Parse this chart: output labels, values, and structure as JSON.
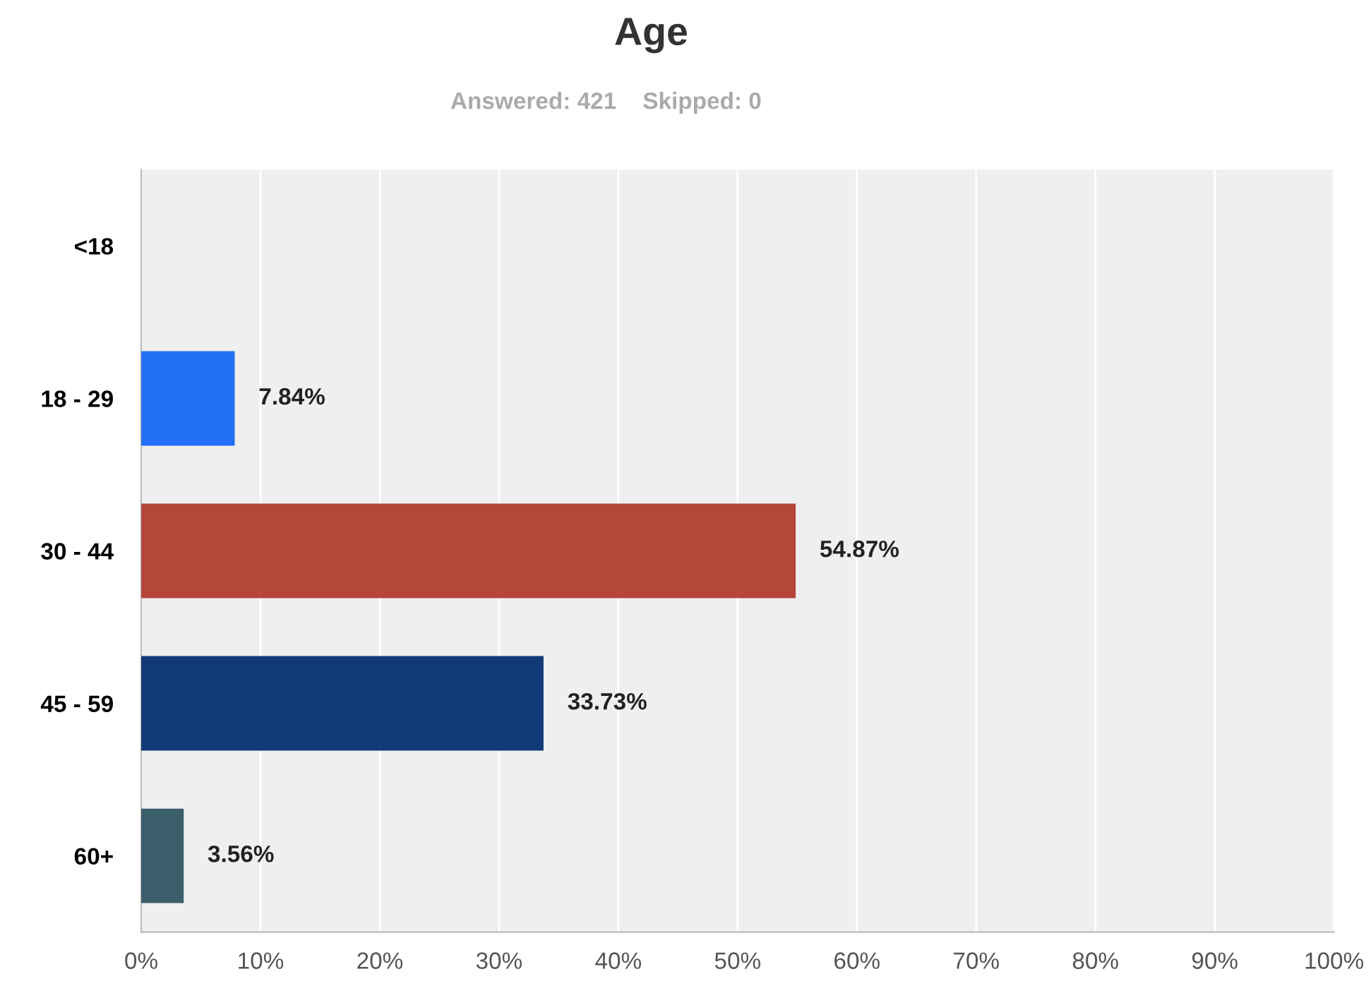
{
  "chart_data": {
    "type": "bar",
    "orientation": "horizontal",
    "title": "Age",
    "subtitle": "Answered: 421    Skipped: 0",
    "categories": [
      "<18",
      "18 - 29",
      "30 - 44",
      "45 - 59",
      "60+"
    ],
    "values": [
      0,
      7.84,
      54.87,
      33.73,
      3.56
    ],
    "colors": [
      "#2470f5",
      "#2470f5",
      "#b5463a",
      "#123a78",
      "#3a5e6a"
    ],
    "value_labels": [
      null,
      "7.84%",
      "54.87%",
      "33.73%",
      "3.56%"
    ],
    "xlim": [
      0,
      100
    ],
    "xticks": [
      {
        "value": 0,
        "label": "0%"
      },
      {
        "value": 10,
        "label": "10%"
      },
      {
        "value": 20,
        "label": "20%"
      },
      {
        "value": 30,
        "label": "30%"
      },
      {
        "value": 40,
        "label": "40%"
      },
      {
        "value": 50,
        "label": "50%"
      },
      {
        "value": 60,
        "label": "60%"
      },
      {
        "value": 70,
        "label": "70%"
      },
      {
        "value": 80,
        "label": "80%"
      },
      {
        "value": 90,
        "label": "90%"
      },
      {
        "value": 100,
        "label": "100%"
      }
    ],
    "grid": "x",
    "legend": false
  }
}
